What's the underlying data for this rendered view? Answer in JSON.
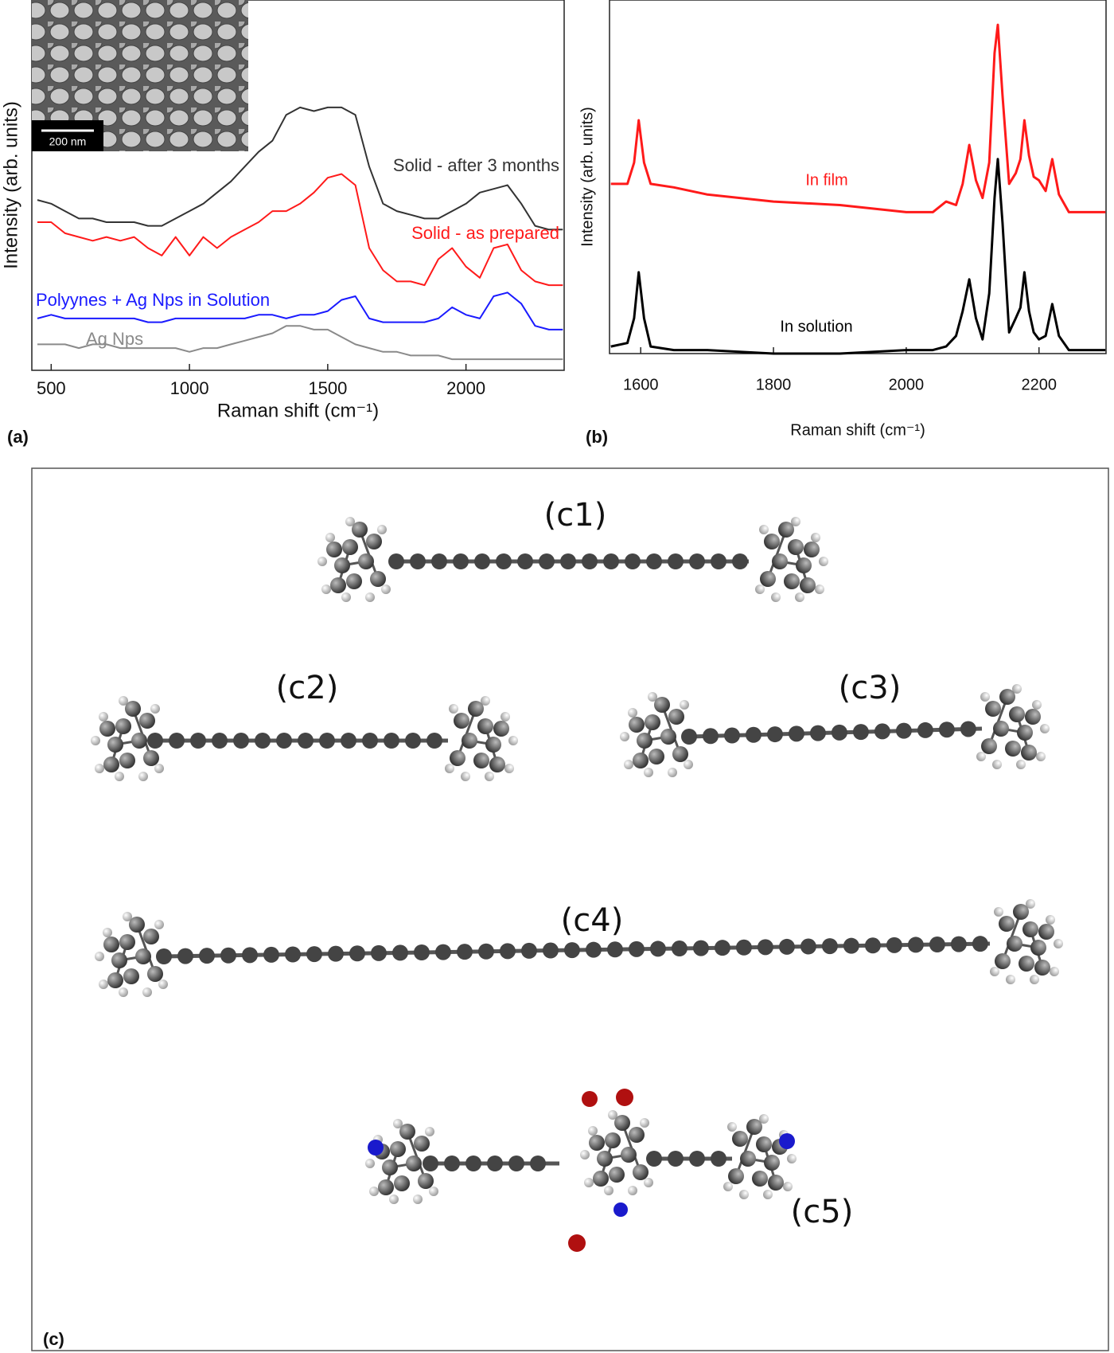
{
  "chart_data": [
    {
      "type": "line",
      "panel": "(a)",
      "x_label": "Raman shift (cm⁻¹)",
      "y_label": "Intensity (arb. units)",
      "inset_scale_label": "200 nm",
      "x": [
        450,
        500,
        550,
        600,
        650,
        700,
        750,
        800,
        850,
        900,
        950,
        1000,
        1050,
        1100,
        1150,
        1200,
        1250,
        1300,
        1350,
        1400,
        1450,
        1500,
        1550,
        1600,
        1650,
        1700,
        1750,
        1800,
        1850,
        1900,
        1950,
        2000,
        2050,
        2100,
        2150,
        2200,
        2250,
        2300,
        2350
      ],
      "xlim": [
        430,
        2355
      ],
      "xticks": [
        500,
        1000,
        1500,
        2000
      ],
      "ylim": [
        0,
        100
      ],
      "series": [
        {
          "name": "Solid - after 3 months",
          "color": "#333333",
          "values": [
            46,
            45,
            43,
            41,
            41,
            40,
            40,
            40,
            39,
            39,
            41,
            43,
            45,
            48,
            51,
            55,
            59,
            62,
            69,
            71,
            70,
            71,
            71,
            69,
            55,
            45,
            43,
            42,
            41,
            41,
            43,
            45,
            48,
            49,
            50,
            45,
            39,
            38,
            38
          ]
        },
        {
          "name": "Solid - as prepared",
          "color": "#ff1a1a",
          "values": [
            40,
            40,
            37,
            36,
            35,
            36,
            35,
            36,
            33,
            31,
            36,
            31,
            36,
            33,
            36,
            38,
            40,
            43,
            43,
            45,
            48,
            52,
            53,
            50,
            33,
            27,
            24,
            24,
            23,
            30,
            33,
            28,
            25,
            33,
            34,
            27,
            24,
            23,
            23
          ]
        },
        {
          "name": "Polyynes + Ag Nps in Solution",
          "color": "#1a1aff",
          "values": [
            14,
            15,
            14,
            14,
            14,
            14,
            14,
            14,
            13,
            13,
            14,
            14,
            14,
            14,
            14,
            14,
            15,
            15,
            14,
            15,
            15,
            16,
            19,
            20,
            14,
            13,
            13,
            13,
            13,
            14,
            17,
            15,
            14,
            20,
            21,
            18,
            12,
            11,
            11
          ]
        },
        {
          "name": "Ag Nps",
          "color": "#8a8a8a",
          "values": [
            7,
            7,
            7,
            6,
            7,
            7,
            6,
            6,
            6,
            6,
            6,
            5,
            6,
            6,
            7,
            8,
            9,
            10,
            12,
            12,
            11,
            11,
            9,
            7,
            6,
            5,
            5,
            4,
            4,
            4,
            3,
            3,
            3,
            3,
            3,
            3,
            3,
            3,
            3
          ]
        }
      ]
    },
    {
      "type": "line",
      "panel": "(b)",
      "x_label": "Raman shift (cm⁻¹)",
      "y_label": "Intensity (arb. units)",
      "x": [
        1555,
        1580,
        1590,
        1597,
        1605,
        1615,
        1650,
        1700,
        1800,
        1900,
        2000,
        2040,
        2060,
        2075,
        2085,
        2095,
        2105,
        2115,
        2125,
        2133,
        2138,
        2145,
        2155,
        2165,
        2172,
        2178,
        2185,
        2192,
        2200,
        2210,
        2220,
        2230,
        2245,
        2270,
        2300
      ],
      "xlim": [
        1553,
        2301
      ],
      "xticks": [
        1600,
        1800,
        2000,
        2200
      ],
      "ylim": [
        0,
        100
      ],
      "series": [
        {
          "name": "In film",
          "color": "#ff1a1a",
          "values": [
            48,
            48,
            54,
            66,
            54,
            48,
            47,
            45,
            43,
            42,
            40,
            40,
            43,
            42,
            48,
            59,
            49,
            44,
            54,
            85,
            93,
            73,
            48,
            51,
            55,
            66,
            56,
            50,
            49,
            46,
            55,
            45,
            40,
            40,
            40
          ]
        },
        {
          "name": "In solution",
          "color": "#000000",
          "values": [
            2,
            3,
            10,
            23,
            10,
            2,
            1,
            1,
            0,
            0,
            1,
            1,
            2,
            5,
            12,
            21,
            10,
            4,
            17,
            44,
            55,
            37,
            6,
            10,
            13,
            23,
            12,
            6,
            4,
            5,
            14,
            5,
            1,
            1,
            1
          ]
        }
      ]
    }
  ],
  "figure_c": {
    "panel": "(c)",
    "labels": [
      "(c1)",
      "(c2)",
      "(c3)",
      "(c4)",
      "(c5)"
    ]
  }
}
